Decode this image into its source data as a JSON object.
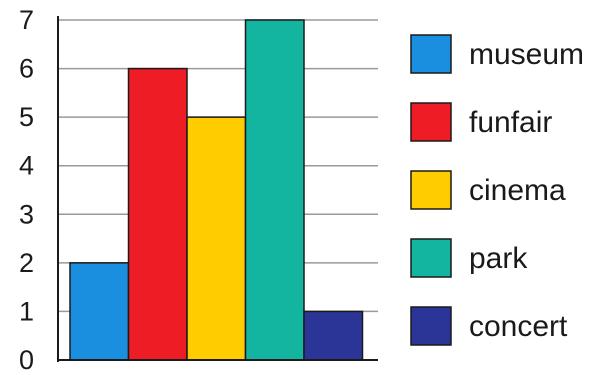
{
  "chart_data": {
    "type": "bar",
    "categories": [
      "museum",
      "funfair",
      "cinema",
      "park",
      "concert"
    ],
    "values": [
      2,
      6,
      5,
      7,
      1
    ],
    "colors": [
      "#1a8fe0",
      "#ee1c25",
      "#ffcc00",
      "#13b5a0",
      "#2b3597"
    ],
    "ylim": [
      0,
      7
    ],
    "yticks": [
      "0",
      "1",
      "2",
      "3",
      "4",
      "5",
      "6",
      "7"
    ],
    "grid": true,
    "legend_position": "right",
    "legend": [
      "museum",
      "funfair",
      "cinema",
      "park",
      "concert"
    ]
  }
}
